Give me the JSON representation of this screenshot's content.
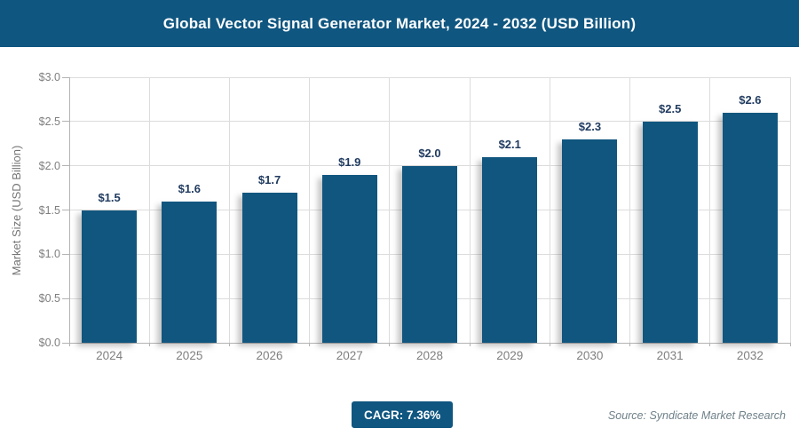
{
  "header": {
    "title": "Global Vector Signal Generator Market, 2024 - 2032 (USD Billion)"
  },
  "chart_data": {
    "type": "bar",
    "title": "Global Vector Signal Generator Market, 2024 - 2032 (USD Billion)",
    "categories": [
      "2024",
      "2025",
      "2026",
      "2027",
      "2028",
      "2029",
      "2030",
      "2031",
      "2032"
    ],
    "values": [
      1.5,
      1.6,
      1.7,
      1.9,
      2.0,
      2.1,
      2.3,
      2.5,
      2.6
    ],
    "value_labels": [
      "$1.5",
      "$1.6",
      "$1.7",
      "$1.9",
      "$2.0",
      "$2.1",
      "$2.3",
      "$2.5",
      "$2.6"
    ],
    "xlabel": "",
    "ylabel": "Market Size (USD Billion)",
    "ylim": [
      0,
      3.0
    ],
    "ytick_step": 0.5,
    "ytick_labels": [
      "$0.0",
      "$0.5",
      "$1.0",
      "$1.5",
      "$2.0",
      "$2.5",
      "$3.0"
    ],
    "grid": true,
    "legend": false
  },
  "footer": {
    "cagr_label": "CAGR: 7.36%",
    "source_label": "Source: Syndicate Market Research"
  },
  "colors": {
    "accent_blue": "#0F5680",
    "bar_fill": "#11567F",
    "value_label": "#1F3A5F",
    "axis_text": "#7F7F7F",
    "grid_line": "#DCDCDC",
    "axis_line": "#B3B3B3",
    "source_text": "#6F8089"
  }
}
